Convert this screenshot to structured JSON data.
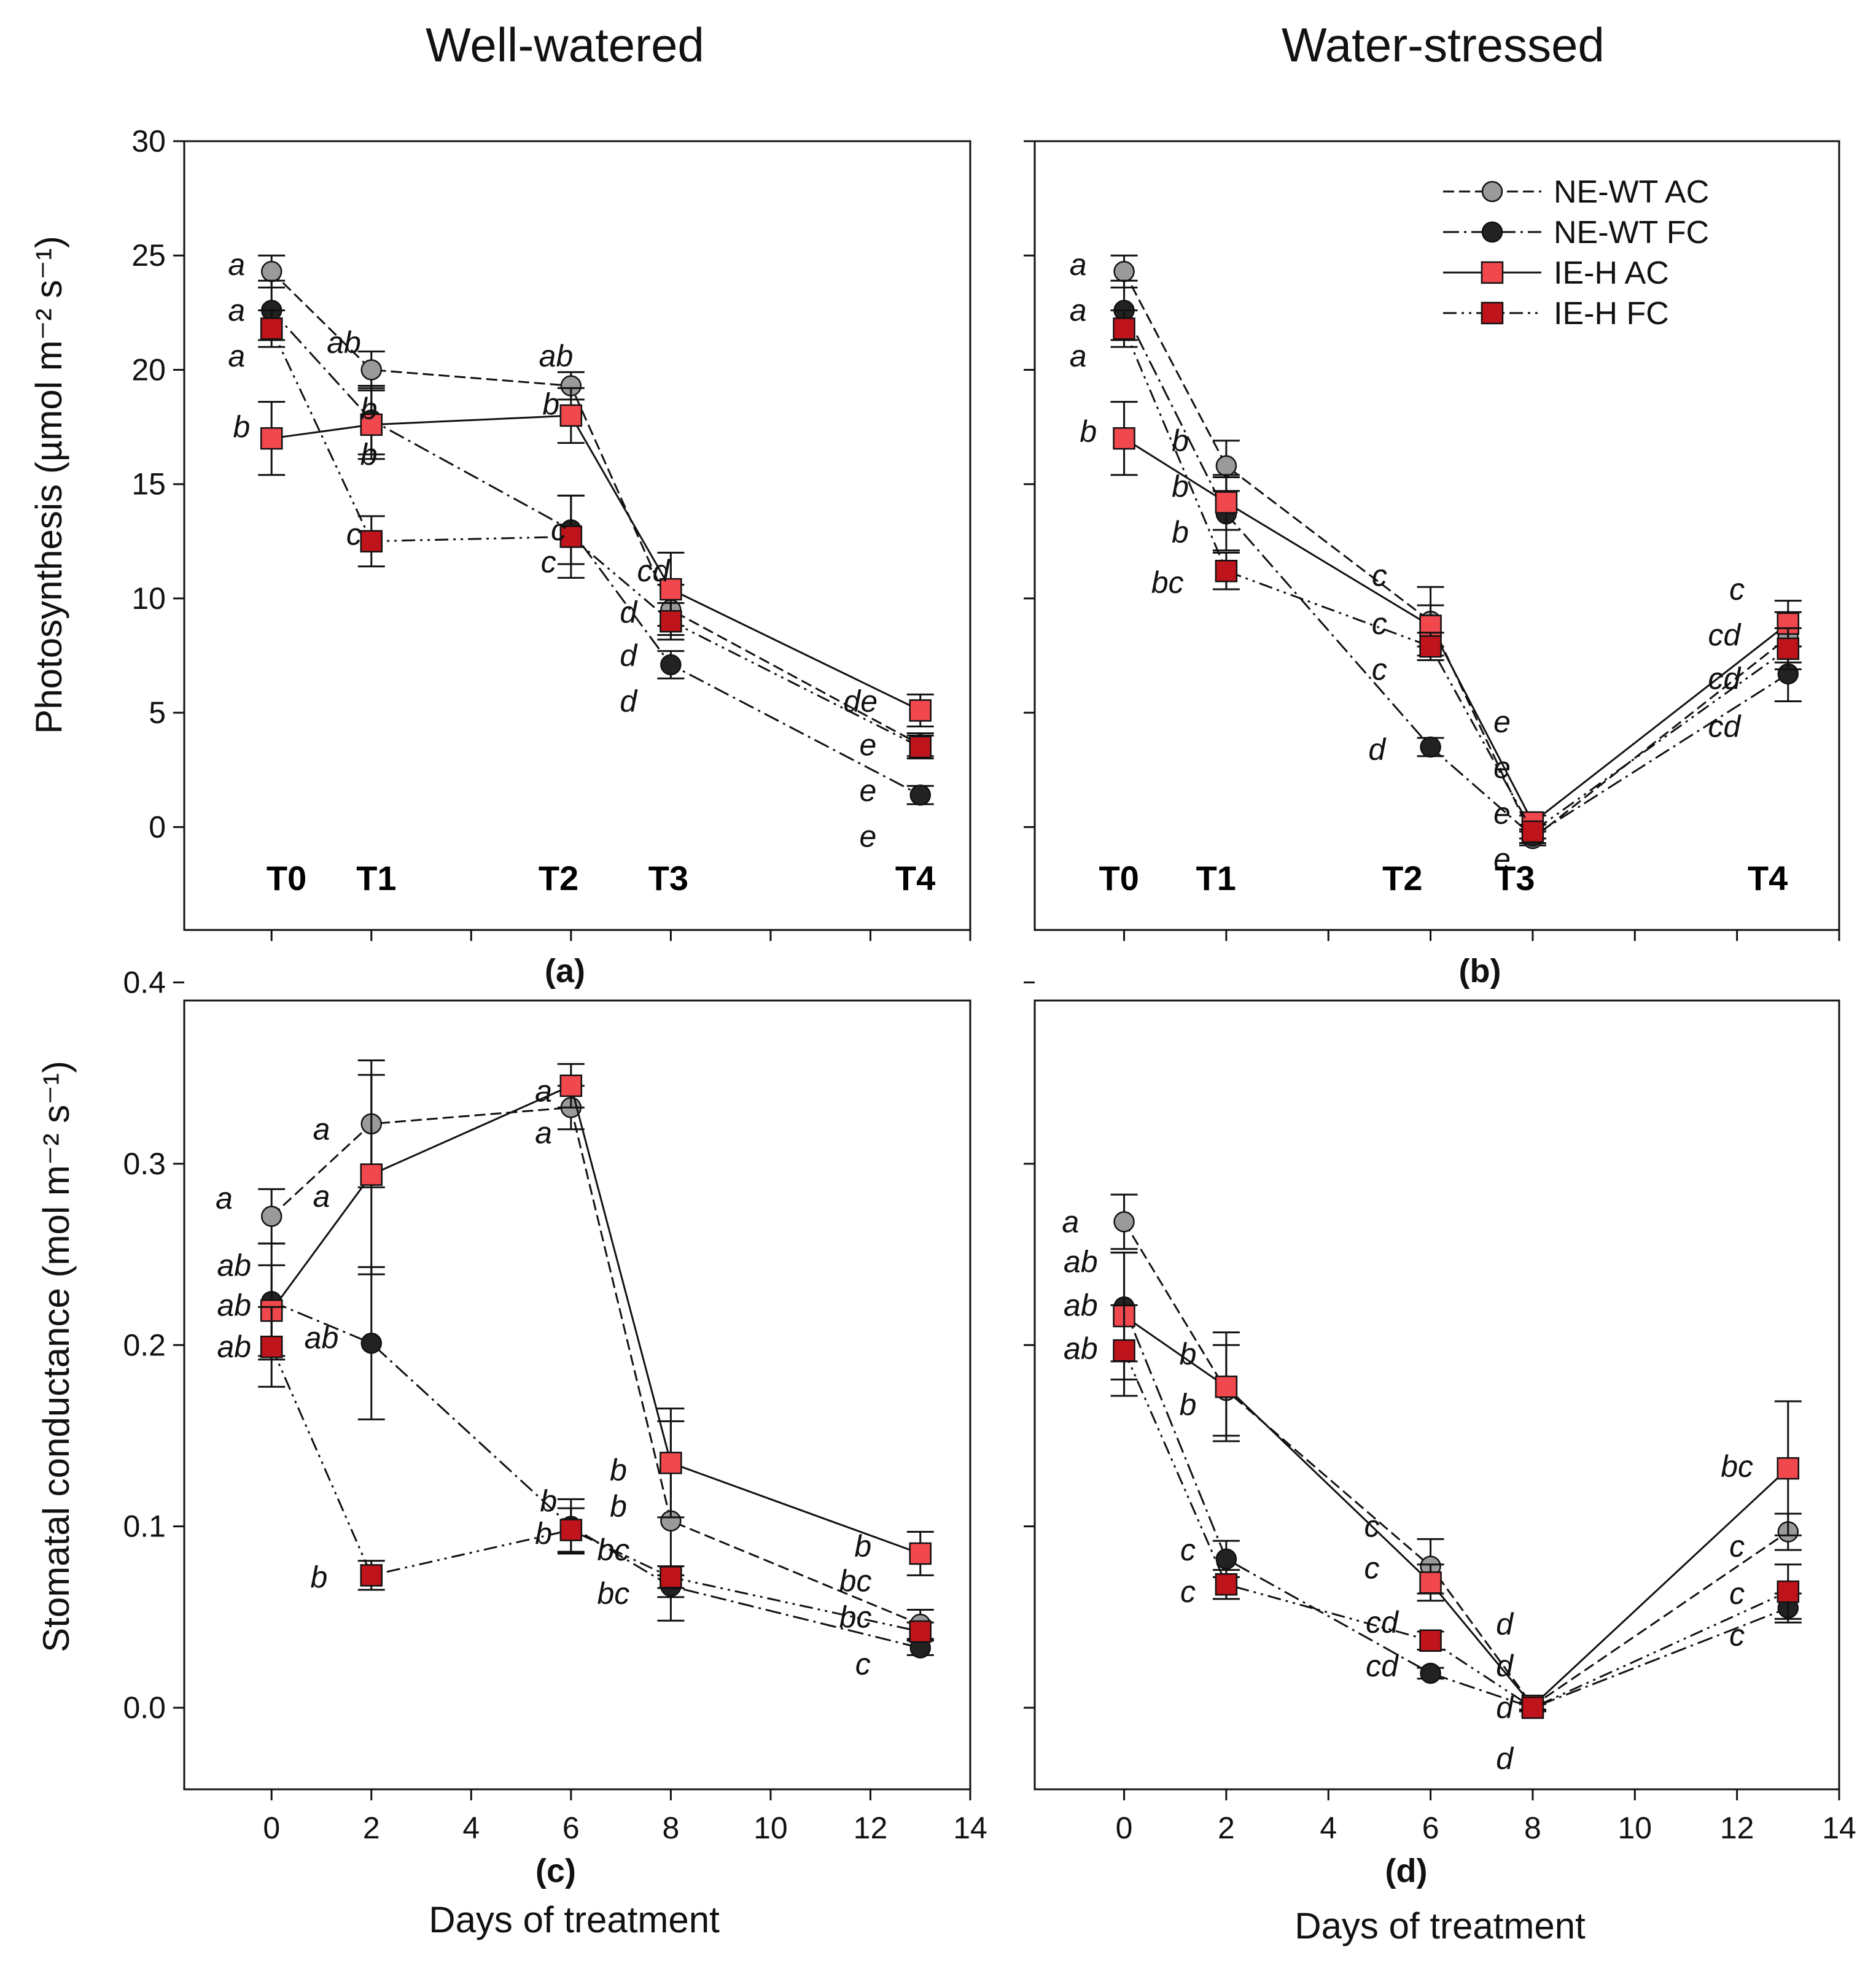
{
  "figure": {
    "col_titles": [
      "Well-watered",
      "Water-stressed"
    ],
    "xlabel": "Days of treatment",
    "ylabel_top": "Photosynthesis (µmol m⁻² s⁻¹)",
    "ylabel_bottom": "Stomatal conductance (mol m⁻² s⁻¹)",
    "x_ticks": [
      0,
      2,
      4,
      6,
      8,
      10,
      12,
      14
    ],
    "y_ticks_top": [
      0,
      5,
      10,
      15,
      20,
      25,
      30
    ],
    "y_ticks_bottom": [
      "0.0",
      "0.1",
      "0.2",
      "0.3",
      "0.4"
    ]
  },
  "legend": [
    {
      "name": "NE-WT AC",
      "marker": "circle",
      "color": "#9a9a9a",
      "dash": "18,8"
    },
    {
      "name": "NE-WT FC",
      "marker": "circle",
      "color": "#222222",
      "dash": "26,8,4,8"
    },
    {
      "name": "IE-H AC",
      "marker": "square",
      "color": "#f0484d",
      "dash": "none"
    },
    {
      "name": "IE-H FC",
      "marker": "square",
      "color": "#c0141c",
      "dash": "22,8,4,8,4,8"
    }
  ],
  "chart_data": [
    {
      "panel": "(a)",
      "type": "line",
      "title": "Well-watered",
      "xlabel": "",
      "ylabel": "Photosynthesis (µmol m⁻² s⁻¹)",
      "xlim": [
        -1.75,
        14
      ],
      "ylim": [
        -4.5,
        30
      ],
      "x": [
        0,
        2,
        6,
        8,
        13
      ],
      "time_points": [
        {
          "label": "T0",
          "x": 0.3
        },
        {
          "label": "T1",
          "x": 2.1
        },
        {
          "label": "T2",
          "x": 5.75
        },
        {
          "label": "T3",
          "x": 7.95
        },
        {
          "label": "T4",
          "x": 12.9
        }
      ],
      "series": [
        {
          "name": "NE-WT AC",
          "values": [
            24.3,
            20.0,
            19.3,
            9.5,
            3.6
          ],
          "errors": [
            0.7,
            0.8,
            0.6,
            1.1,
            0.5
          ]
        },
        {
          "name": "NE-WT FC",
          "values": [
            22.6,
            17.8,
            13.0,
            7.1,
            1.4
          ],
          "errors": [
            1.3,
            1.5,
            1.5,
            0.6,
            0.4
          ]
        },
        {
          "name": "IE-H AC",
          "values": [
            17.0,
            17.6,
            18.0,
            10.4,
            5.1
          ],
          "errors": [
            1.6,
            1.5,
            1.2,
            1.6,
            0.7
          ]
        },
        {
          "name": "IE-H FC",
          "values": [
            21.8,
            12.5,
            12.7,
            9.0,
            3.5
          ],
          "errors": [
            0.8,
            1.1,
            1.8,
            0.8,
            0.5
          ]
        }
      ],
      "annotations": [
        {
          "text": "a",
          "x": -0.7,
          "y": 24.6
        },
        {
          "text": "a",
          "x": -0.7,
          "y": 22.6
        },
        {
          "text": "a",
          "x": -0.7,
          "y": 20.6
        },
        {
          "text": "b",
          "x": -0.6,
          "y": 17.5
        },
        {
          "text": "ab",
          "x": 1.45,
          "y": 21.2
        },
        {
          "text": "b",
          "x": 1.95,
          "y": 18.3
        },
        {
          "text": "b",
          "x": 1.95,
          "y": 16.3
        },
        {
          "text": "c",
          "x": 1.65,
          "y": 12.8
        },
        {
          "text": "ab",
          "x": 5.7,
          "y": 20.6
        },
        {
          "text": "b",
          "x": 5.6,
          "y": 18.5
        },
        {
          "text": "c",
          "x": 5.75,
          "y": 13.0
        },
        {
          "text": "c",
          "x": 5.55,
          "y": 11.6
        },
        {
          "text": "cd",
          "x": 7.65,
          "y": 11.2
        },
        {
          "text": "d",
          "x": 7.15,
          "y": 9.4
        },
        {
          "text": "d",
          "x": 7.15,
          "y": 7.5
        },
        {
          "text": "d",
          "x": 7.15,
          "y": 5.5
        },
        {
          "text": "de",
          "x": 11.8,
          "y": 5.5
        },
        {
          "text": "e",
          "x": 11.95,
          "y": 3.6
        },
        {
          "text": "e",
          "x": 11.95,
          "y": 1.6
        },
        {
          "text": "e",
          "x": 11.95,
          "y": -0.4
        }
      ]
    },
    {
      "panel": "(b)",
      "type": "line",
      "title": "Water-stressed",
      "xlabel": "",
      "ylabel": "",
      "xlim": [
        -1.75,
        14
      ],
      "ylim": [
        -4.5,
        30
      ],
      "x": [
        0,
        2,
        6,
        8,
        13
      ],
      "time_points": [
        {
          "label": "T0",
          "x": -0.1
        },
        {
          "label": "T1",
          "x": 1.8
        },
        {
          "label": "T2",
          "x": 5.45
        },
        {
          "label": "T3",
          "x": 7.65
        },
        {
          "label": "T4",
          "x": 12.6
        }
      ],
      "series": [
        {
          "name": "NE-WT AC",
          "values": [
            24.3,
            15.8,
            9.0,
            -0.5,
            8.3
          ],
          "errors": [
            0.7,
            1.1,
            1.5,
            0.3,
            1.1
          ]
        },
        {
          "name": "NE-WT FC",
          "values": [
            22.6,
            13.7,
            3.5,
            -0.4,
            6.7
          ],
          "errors": [
            1.3,
            1.6,
            0.4,
            0.3,
            1.2
          ]
        },
        {
          "name": "IE-H AC",
          "values": [
            17.0,
            14.2,
            8.8,
            0.2,
            8.9
          ],
          "errors": [
            1.6,
            1.2,
            0.9,
            0.3,
            1.0
          ]
        },
        {
          "name": "IE-H FC",
          "values": [
            21.8,
            11.2,
            7.9,
            -0.2,
            7.8
          ],
          "errors": [
            0.8,
            0.8,
            0.6,
            0.3,
            0.9
          ]
        }
      ],
      "annotations": [
        {
          "text": "a",
          "x": -0.9,
          "y": 24.6
        },
        {
          "text": "a",
          "x": -0.9,
          "y": 22.6
        },
        {
          "text": "a",
          "x": -0.9,
          "y": 20.6
        },
        {
          "text": "b",
          "x": -0.7,
          "y": 17.3
        },
        {
          "text": "b",
          "x": 1.1,
          "y": 16.9
        },
        {
          "text": "b",
          "x": 1.1,
          "y": 14.9
        },
        {
          "text": "b",
          "x": 1.1,
          "y": 12.9
        },
        {
          "text": "bc",
          "x": 0.85,
          "y": 10.7
        },
        {
          "text": "c",
          "x": 5.0,
          "y": 11.0
        },
        {
          "text": "c",
          "x": 5.0,
          "y": 8.9
        },
        {
          "text": "c",
          "x": 5.0,
          "y": 6.9
        },
        {
          "text": "d",
          "x": 4.95,
          "y": 3.4
        },
        {
          "text": "e",
          "x": 7.4,
          "y": 4.6
        },
        {
          "text": "e",
          "x": 7.4,
          "y": 2.6
        },
        {
          "text": "e",
          "x": 7.4,
          "y": 0.6
        },
        {
          "text": "e",
          "x": 7.4,
          "y": -1.4
        },
        {
          "text": "c",
          "x": 12.0,
          "y": 10.4
        },
        {
          "text": "cd",
          "x": 11.75,
          "y": 8.4
        },
        {
          "text": "cd",
          "x": 11.75,
          "y": 6.5
        },
        {
          "text": "cd",
          "x": 11.75,
          "y": 4.4
        }
      ]
    },
    {
      "panel": "(c)",
      "type": "line",
      "title": "",
      "xlabel": "Days of treatment",
      "ylabel": "Stomatal conductance (mol m⁻² s⁻¹)",
      "xlim": [
        -1.75,
        14
      ],
      "ylim": [
        -0.045,
        0.39
      ],
      "x": [
        0,
        2,
        6,
        8,
        13
      ],
      "series": [
        {
          "name": "NE-WT AC",
          "values": [
            0.271,
            0.322,
            0.331,
            0.103,
            0.046
          ],
          "errors": [
            0.015,
            0.035,
            0.012,
            0.055,
            0.008
          ]
        },
        {
          "name": "NE-WT FC",
          "values": [
            0.224,
            0.201,
            0.1,
            0.067,
            0.033
          ],
          "errors": [
            0.032,
            0.042,
            0.015,
            0.006,
            0.004
          ]
        },
        {
          "name": "IE-H AC",
          "values": [
            0.219,
            0.294,
            0.343,
            0.135,
            0.085
          ],
          "errors": [
            0.025,
            0.055,
            0.012,
            0.03,
            0.012
          ]
        },
        {
          "name": "IE-H FC",
          "values": [
            0.199,
            0.073,
            0.098,
            0.072,
            0.042
          ],
          "errors": [
            0.022,
            0.008,
            0.012,
            0.006,
            0.005
          ]
        }
      ],
      "annotations": [
        {
          "text": "a",
          "x": -0.95,
          "y": 0.281
        },
        {
          "text": "ab",
          "x": -0.75,
          "y": 0.244
        },
        {
          "text": "ab",
          "x": -0.75,
          "y": 0.222
        },
        {
          "text": "ab",
          "x": -0.75,
          "y": 0.199
        },
        {
          "text": "a",
          "x": 1.0,
          "y": 0.319
        },
        {
          "text": "a",
          "x": 1.0,
          "y": 0.282
        },
        {
          "text": "ab",
          "x": 1.0,
          "y": 0.204
        },
        {
          "text": "b",
          "x": 0.95,
          "y": 0.072
        },
        {
          "text": "a",
          "x": 5.45,
          "y": 0.34
        },
        {
          "text": "a",
          "x": 5.45,
          "y": 0.317
        },
        {
          "text": "b",
          "x": 5.55,
          "y": 0.114
        },
        {
          "text": "b",
          "x": 5.45,
          "y": 0.096
        },
        {
          "text": "b",
          "x": 6.95,
          "y": 0.131
        },
        {
          "text": "b",
          "x": 6.95,
          "y": 0.111
        },
        {
          "text": "bc",
          "x": 6.85,
          "y": 0.087
        },
        {
          "text": "bc",
          "x": 6.85,
          "y": 0.063
        },
        {
          "text": "b",
          "x": 11.85,
          "y": 0.089
        },
        {
          "text": "bc",
          "x": 11.7,
          "y": 0.07
        },
        {
          "text": "bc",
          "x": 11.7,
          "y": 0.05
        },
        {
          "text": "c",
          "x": 11.85,
          "y": 0.024
        }
      ]
    },
    {
      "panel": "(d)",
      "type": "line",
      "title": "",
      "xlabel": "Days of treatment",
      "ylabel": "",
      "xlim": [
        -1.75,
        14
      ],
      "ylim": [
        -0.045,
        0.39
      ],
      "x": [
        0,
        2,
        6,
        8,
        13
      ],
      "series": [
        {
          "name": "NE-WT AC",
          "values": [
            0.268,
            0.175,
            0.078,
            0.001,
            0.097
          ],
          "errors": [
            0.015,
            0.025,
            0.015,
            0.002,
            0.01
          ]
        },
        {
          "name": "NE-WT FC",
          "values": [
            0.221,
            0.082,
            0.019,
            0.0,
            0.055
          ],
          "errors": [
            0.03,
            0.01,
            0.003,
            0.002,
            0.008
          ]
        },
        {
          "name": "IE-H AC",
          "values": [
            0.216,
            0.177,
            0.069,
            0.001,
            0.132
          ],
          "errors": [
            0.035,
            0.03,
            0.01,
            0.002,
            0.037
          ]
        },
        {
          "name": "IE-H FC",
          "values": [
            0.197,
            0.068,
            0.037,
            0.0,
            0.064
          ],
          "errors": [
            0.025,
            0.008,
            0.005,
            0.002,
            0.015
          ]
        }
      ],
      "annotations": [
        {
          "text": "a",
          "x": -1.05,
          "y": 0.268
        },
        {
          "text": "ab",
          "x": -0.85,
          "y": 0.246
        },
        {
          "text": "ab",
          "x": -0.85,
          "y": 0.222
        },
        {
          "text": "ab",
          "x": -0.85,
          "y": 0.198
        },
        {
          "text": "b",
          "x": 1.25,
          "y": 0.195
        },
        {
          "text": "b",
          "x": 1.25,
          "y": 0.167
        },
        {
          "text": "c",
          "x": 1.25,
          "y": 0.087
        },
        {
          "text": "c",
          "x": 1.25,
          "y": 0.064
        },
        {
          "text": "c",
          "x": 4.85,
          "y": 0.1
        },
        {
          "text": "c",
          "x": 4.85,
          "y": 0.077
        },
        {
          "text": "cd",
          "x": 5.05,
          "y": 0.047
        },
        {
          "text": "cd",
          "x": 5.05,
          "y": 0.023
        },
        {
          "text": "d",
          "x": 7.45,
          "y": 0.046
        },
        {
          "text": "d",
          "x": 7.45,
          "y": 0.023
        },
        {
          "text": "d",
          "x": 7.45,
          "y": 0.0
        },
        {
          "text": "d",
          "x": 7.45,
          "y": -0.028
        },
        {
          "text": "bc",
          "x": 12.0,
          "y": 0.133
        },
        {
          "text": "c",
          "x": 12.0,
          "y": 0.089
        },
        {
          "text": "c",
          "x": 12.0,
          "y": 0.063
        },
        {
          "text": "c",
          "x": 12.0,
          "y": 0.04
        }
      ]
    }
  ]
}
